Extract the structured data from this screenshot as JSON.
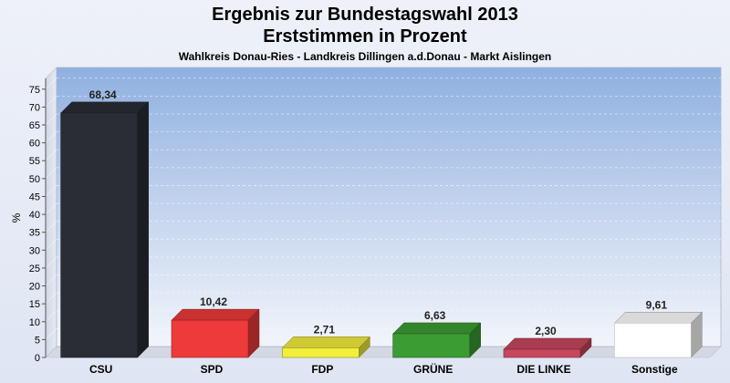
{
  "chart_data": {
    "type": "bar",
    "title": "Ergebnis zur Bundestagswahl 2013",
    "subtitle": "Erststimmen in Prozent",
    "subtitle2": "Wahlkreis Donau-Ries - Landkreis Dillingen a.d.Donau - Markt Aislingen",
    "ylabel": "%",
    "xlabel": "",
    "ylim": [
      0,
      78
    ],
    "yticks": [
      0,
      5,
      10,
      15,
      20,
      25,
      30,
      35,
      40,
      45,
      50,
      55,
      60,
      65,
      70,
      75
    ],
    "categories": [
      "CSU",
      "SPD",
      "FDP",
      "GRÜNE",
      "DIE LINKE",
      "Sonstige"
    ],
    "values": [
      68.34,
      10.42,
      2.71,
      6.63,
      2.3,
      9.61
    ],
    "value_labels": [
      "68,34",
      "10,42",
      "2,71",
      "6,63",
      "2,30",
      "9,61"
    ],
    "colors": [
      "#2a2d35",
      "#ee3a3a",
      "#f2ee3c",
      "#3c9c34",
      "#c8465e",
      "#ffffff"
    ],
    "grid": true,
    "legend": "none"
  }
}
